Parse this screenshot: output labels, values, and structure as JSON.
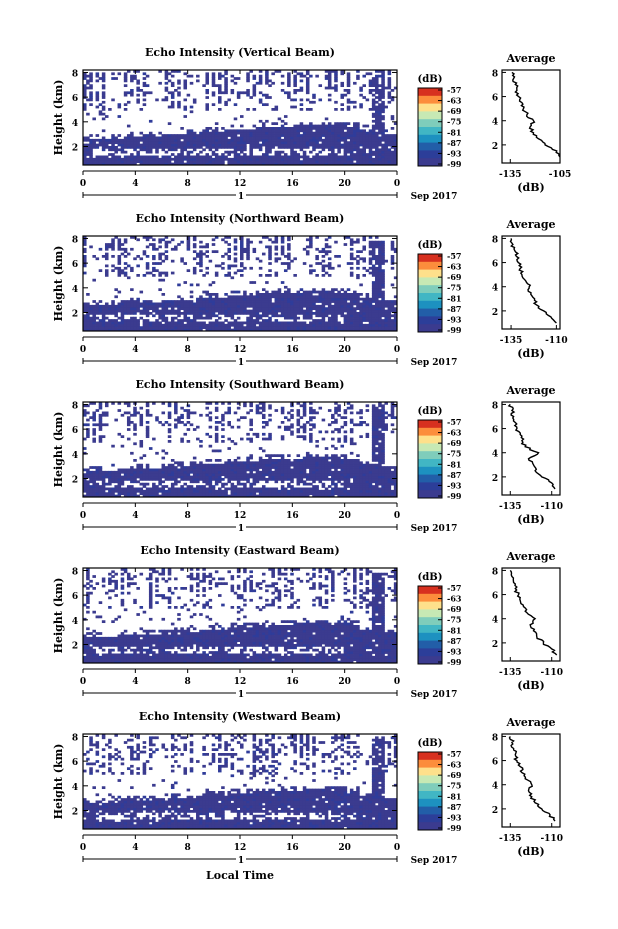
{
  "figure": {
    "xlabel_bottom": "Local Time",
    "date_label": "Sep 2017",
    "day_label": "1",
    "colorbar_unit": "(dB)",
    "colorbar_ticks": [
      "-57",
      "-63",
      "-69",
      "-75",
      "-81",
      "-87",
      "-93",
      "-99"
    ],
    "colorbar_colors": [
      "#d7301f",
      "#fc8d3c",
      "#fee08b",
      "#c7e9b4",
      "#7fcdbb",
      "#41b6c4",
      "#1d91c0",
      "#225ea8",
      "#2c3e99",
      "#3b3b8f"
    ],
    "heat_color": "#3b3b8f",
    "heat_color_alt": "#2f3c9a"
  },
  "chart_data": [
    {
      "type": "heatmap",
      "title": "Echo Intensity (Vertical Beam)",
      "ylabel": "Height (km)",
      "x_ticks": [
        "0",
        "4",
        "8",
        "12",
        "16",
        "20",
        "0"
      ],
      "y_ticks": [
        "2",
        "4",
        "6",
        "8"
      ],
      "xlim": [
        0,
        24
      ],
      "ylim": [
        0.5,
        8.2
      ],
      "clim": [
        -99,
        -57
      ],
      "profile": {
        "title": "Average",
        "xlabel": "(dB)",
        "x_ticks": [
          "-135",
          "-105"
        ],
        "y_ticks": [
          "2",
          "4",
          "6",
          "8"
        ],
        "xlim": [
          -140,
          -105
        ],
        "ylim": [
          0.5,
          8.2
        ],
        "height": [
          1.0,
          1.5,
          2.0,
          2.5,
          3.0,
          3.5,
          4.0,
          4.5,
          5.0,
          5.5,
          6.0,
          6.5,
          7.0,
          7.5,
          8.0
        ],
        "value": [
          -105,
          -107,
          -114,
          -118,
          -121,
          -123,
          -121,
          -125,
          -127,
          -128,
          -130,
          -131,
          -132,
          -133,
          -134
        ]
      }
    },
    {
      "type": "heatmap",
      "title": "Echo Intensity (Northward Beam)",
      "ylabel": "Height (km)",
      "x_ticks": [
        "0",
        "4",
        "8",
        "12",
        "16",
        "20",
        "0"
      ],
      "y_ticks": [
        "2",
        "4",
        "6",
        "8"
      ],
      "xlim": [
        0,
        24
      ],
      "ylim": [
        0.5,
        8.2
      ],
      "clim": [
        -99,
        -57
      ],
      "profile": {
        "title": "Average",
        "xlabel": "(dB)",
        "x_ticks": [
          "-135",
          "-110"
        ],
        "y_ticks": [
          "2",
          "4",
          "6",
          "8"
        ],
        "xlim": [
          -140,
          -108
        ],
        "ylim": [
          0.5,
          8.2
        ],
        "height": [
          1.0,
          1.5,
          2.0,
          2.5,
          3.0,
          3.5,
          4.0,
          4.5,
          5.0,
          5.5,
          6.0,
          6.5,
          7.0,
          7.5,
          8.0
        ],
        "value": [
          -110,
          -113,
          -117,
          -121,
          -122,
          -124,
          -125,
          -127,
          -129,
          -130,
          -131,
          -132,
          -133,
          -134,
          -135
        ]
      }
    },
    {
      "type": "heatmap",
      "title": "Echo Intensity (Southward Beam)",
      "ylabel": "Height (km)",
      "x_ticks": [
        "0",
        "4",
        "8",
        "12",
        "16",
        "20",
        "0"
      ],
      "y_ticks": [
        "2",
        "4",
        "6",
        "8"
      ],
      "xlim": [
        0,
        24
      ],
      "ylim": [
        0.5,
        8.2
      ],
      "clim": [
        -99,
        -57
      ],
      "profile": {
        "title": "Average",
        "xlabel": "(dB)",
        "x_ticks": [
          "-135",
          "-110"
        ],
        "y_ticks": [
          "2",
          "4",
          "6",
          "8"
        ],
        "xlim": [
          -140,
          -105
        ],
        "ylim": [
          0.5,
          8.2
        ],
        "height": [
          1.0,
          1.5,
          2.0,
          2.5,
          3.0,
          3.5,
          4.0,
          4.5,
          5.0,
          5.5,
          6.0,
          6.5,
          7.0,
          7.5,
          8.0
        ],
        "value": [
          -108,
          -110,
          -116,
          -120,
          -121,
          -124,
          -118,
          -126,
          -128,
          -129,
          -131,
          -132,
          -133,
          -134,
          -135
        ]
      }
    },
    {
      "type": "heatmap",
      "title": "Echo Intensity (Eastward Beam)",
      "ylabel": "Height (km)",
      "x_ticks": [
        "0",
        "4",
        "8",
        "12",
        "16",
        "20",
        "0"
      ],
      "y_ticks": [
        "2",
        "4",
        "6",
        "8"
      ],
      "xlim": [
        0,
        24
      ],
      "ylim": [
        0.5,
        8.2
      ],
      "clim": [
        -99,
        -57
      ],
      "profile": {
        "title": "Average",
        "xlabel": "(dB)",
        "x_ticks": [
          "-135",
          "-110"
        ],
        "y_ticks": [
          "2",
          "4",
          "6",
          "8"
        ],
        "xlim": [
          -140,
          -105
        ],
        "ylim": [
          0.5,
          8.2
        ],
        "height": [
          1.0,
          1.5,
          2.0,
          2.5,
          3.0,
          3.5,
          4.0,
          4.5,
          5.0,
          5.5,
          6.0,
          6.5,
          7.0,
          7.5,
          8.0
        ],
        "value": [
          -107,
          -110,
          -115,
          -119,
          -121,
          -123,
          -120,
          -125,
          -127,
          -129,
          -130,
          -132,
          -133,
          -134,
          -135
        ]
      }
    },
    {
      "type": "heatmap",
      "title": "Echo Intensity (Westward Beam)",
      "ylabel": "Height (km)",
      "x_ticks": [
        "0",
        "4",
        "8",
        "12",
        "16",
        "20",
        "0"
      ],
      "y_ticks": [
        "2",
        "4",
        "6",
        "8"
      ],
      "xlim": [
        0,
        24
      ],
      "ylim": [
        0.5,
        8.2
      ],
      "clim": [
        -99,
        -57
      ],
      "profile": {
        "title": "Average",
        "xlabel": "(dB)",
        "x_ticks": [
          "-135",
          "-110"
        ],
        "y_ticks": [
          "2",
          "4",
          "6",
          "8"
        ],
        "xlim": [
          -140,
          -105
        ],
        "ylim": [
          0.5,
          8.2
        ],
        "height": [
          1.0,
          1.5,
          2.0,
          2.5,
          3.0,
          3.5,
          4.0,
          4.5,
          5.0,
          5.5,
          6.0,
          6.5,
          7.0,
          7.5,
          8.0
        ],
        "value": [
          -108,
          -111,
          -116,
          -120,
          -122,
          -124,
          -122,
          -126,
          -128,
          -129,
          -131,
          -132,
          -133,
          -134,
          -135
        ]
      }
    }
  ]
}
